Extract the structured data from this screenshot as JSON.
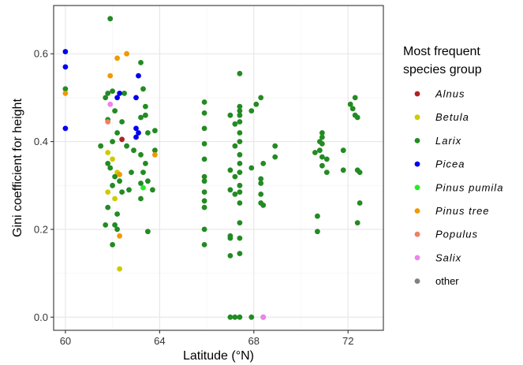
{
  "chart_data": {
    "type": "scatter",
    "xlabel": "Latitude (°N)",
    "ylabel": "Gini coefficient for height",
    "xlim": [
      59.5,
      73.5
    ],
    "ylim": [
      -0.03,
      0.71
    ],
    "xticks": [
      60,
      64,
      68,
      72
    ],
    "xtick_labels": [
      "60",
      "64",
      "68",
      "72"
    ],
    "yticks": [
      0.0,
      0.2,
      0.4,
      0.6
    ],
    "ytick_labels": [
      "0.0",
      "0.2",
      "0.4",
      "0.6"
    ],
    "grid": true,
    "legend": {
      "position": "right",
      "title_lines": [
        "Most frequent",
        "species group"
      ]
    },
    "series": [
      {
        "name": "Alnus",
        "italic": true,
        "color": "#B22222",
        "points": [
          [
            62.4,
            0.405
          ]
        ]
      },
      {
        "name": "Betula",
        "italic": true,
        "color": "#CCCC00",
        "points": [
          [
            61.8,
            0.285
          ],
          [
            62.1,
            0.27
          ],
          [
            62.3,
            0.11
          ],
          [
            62.2,
            0.33
          ],
          [
            61.8,
            0.375
          ],
          [
            62.0,
            0.36
          ]
        ]
      },
      {
        "name": "Larix",
        "italic": true,
        "color": "#228B22",
        "points": [
          [
            60.0,
            0.52
          ],
          [
            61.5,
            0.39
          ],
          [
            61.7,
            0.5
          ],
          [
            61.8,
            0.51
          ],
          [
            61.9,
            0.68
          ],
          [
            62.0,
            0.515
          ],
          [
            61.8,
            0.45
          ],
          [
            62.1,
            0.47
          ],
          [
            62.2,
            0.42
          ],
          [
            62.0,
            0.4
          ],
          [
            61.8,
            0.35
          ],
          [
            61.9,
            0.34
          ],
          [
            62.1,
            0.32
          ],
          [
            62.3,
            0.31
          ],
          [
            62.0,
            0.3
          ],
          [
            61.8,
            0.25
          ],
          [
            62.2,
            0.235
          ],
          [
            61.7,
            0.21
          ],
          [
            62.1,
            0.21
          ],
          [
            62.2,
            0.2
          ],
          [
            62.0,
            0.165
          ],
          [
            62.4,
            0.285
          ],
          [
            62.6,
            0.39
          ],
          [
            62.4,
            0.445
          ],
          [
            62.5,
            0.51
          ],
          [
            62.9,
            0.38
          ],
          [
            63.2,
            0.58
          ],
          [
            63.3,
            0.52
          ],
          [
            63.4,
            0.48
          ],
          [
            63.2,
            0.455
          ],
          [
            63.4,
            0.46
          ],
          [
            63.5,
            0.42
          ],
          [
            63.2,
            0.37
          ],
          [
            63.4,
            0.35
          ],
          [
            63.3,
            0.33
          ],
          [
            63.2,
            0.305
          ],
          [
            63.5,
            0.31
          ],
          [
            63.2,
            0.27
          ],
          [
            63.7,
            0.29
          ],
          [
            63.8,
            0.38
          ],
          [
            63.8,
            0.425
          ],
          [
            63.5,
            0.195
          ],
          [
            62.8,
            0.33
          ],
          [
            62.7,
            0.29
          ],
          [
            65.9,
            0.49
          ],
          [
            65.9,
            0.465
          ],
          [
            65.9,
            0.43
          ],
          [
            65.9,
            0.395
          ],
          [
            65.9,
            0.36
          ],
          [
            65.9,
            0.32
          ],
          [
            65.9,
            0.31
          ],
          [
            65.9,
            0.285
          ],
          [
            65.9,
            0.265
          ],
          [
            65.9,
            0.25
          ],
          [
            65.9,
            0.2
          ],
          [
            65.9,
            0.165
          ],
          [
            67.0,
            0.46
          ],
          [
            67.0,
            0.335
          ],
          [
            67.0,
            0.29
          ],
          [
            67.0,
            0.185
          ],
          [
            67.0,
            0.18
          ],
          [
            67.0,
            0.14
          ],
          [
            67.0,
            0.0
          ],
          [
            67.2,
            0.44
          ],
          [
            67.2,
            0.39
          ],
          [
            67.2,
            0.32
          ],
          [
            67.2,
            0.28
          ],
          [
            67.2,
            0.0
          ],
          [
            67.4,
            0.555
          ],
          [
            67.4,
            0.48
          ],
          [
            67.4,
            0.47
          ],
          [
            67.4,
            0.46
          ],
          [
            67.4,
            0.445
          ],
          [
            67.4,
            0.42
          ],
          [
            67.4,
            0.4
          ],
          [
            67.4,
            0.37
          ],
          [
            67.4,
            0.35
          ],
          [
            67.4,
            0.33
          ],
          [
            67.4,
            0.3
          ],
          [
            67.4,
            0.285
          ],
          [
            67.4,
            0.26
          ],
          [
            67.4,
            0.215
          ],
          [
            67.4,
            0.18
          ],
          [
            67.4,
            0.145
          ],
          [
            67.4,
            0.0
          ],
          [
            67.9,
            0.47
          ],
          [
            67.9,
            0.34
          ],
          [
            67.9,
            0.0
          ],
          [
            68.1,
            0.485
          ],
          [
            68.3,
            0.5
          ],
          [
            68.3,
            0.315
          ],
          [
            68.3,
            0.305
          ],
          [
            68.3,
            0.28
          ],
          [
            68.3,
            0.26
          ],
          [
            68.4,
            0.35
          ],
          [
            68.4,
            0.255
          ],
          [
            68.4,
            0.0
          ],
          [
            68.9,
            0.39
          ],
          [
            68.9,
            0.365
          ],
          [
            70.6,
            0.375
          ],
          [
            70.8,
            0.4
          ],
          [
            70.8,
            0.38
          ],
          [
            70.9,
            0.42
          ],
          [
            70.9,
            0.41
          ],
          [
            70.9,
            0.395
          ],
          [
            70.9,
            0.365
          ],
          [
            70.9,
            0.345
          ],
          [
            71.1,
            0.36
          ],
          [
            71.1,
            0.33
          ],
          [
            70.7,
            0.23
          ],
          [
            70.7,
            0.195
          ],
          [
            71.8,
            0.38
          ],
          [
            71.8,
            0.335
          ],
          [
            72.1,
            0.485
          ],
          [
            72.2,
            0.475
          ],
          [
            72.3,
            0.46
          ],
          [
            72.4,
            0.455
          ],
          [
            72.3,
            0.5
          ],
          [
            72.4,
            0.335
          ],
          [
            72.5,
            0.33
          ],
          [
            72.4,
            0.215
          ],
          [
            72.5,
            0.26
          ]
        ]
      },
      {
        "name": "Picea",
        "italic": true,
        "color": "#0000EE",
        "points": [
          [
            60.0,
            0.605
          ],
          [
            60.0,
            0.57
          ],
          [
            60.0,
            0.43
          ],
          [
            63.1,
            0.55
          ],
          [
            63.0,
            0.5
          ],
          [
            63.0,
            0.43
          ],
          [
            63.1,
            0.42
          ],
          [
            63.0,
            0.41
          ],
          [
            62.3,
            0.51
          ],
          [
            62.2,
            0.5
          ]
        ]
      },
      {
        "name": "Pinus  pumila",
        "italic": true,
        "color": "#22EE22",
        "points": [
          [
            63.3,
            0.295
          ]
        ]
      },
      {
        "name": "Pinus  tree",
        "italic": true,
        "color": "#EE9A00",
        "points": [
          [
            60.0,
            0.51
          ],
          [
            61.9,
            0.55
          ],
          [
            62.2,
            0.59
          ],
          [
            62.6,
            0.6
          ],
          [
            62.3,
            0.325
          ],
          [
            62.3,
            0.185
          ],
          [
            63.8,
            0.37
          ]
        ]
      },
      {
        "name": "Populus",
        "italic": true,
        "color": "#F08060",
        "points": [
          [
            61.8,
            0.445
          ]
        ]
      },
      {
        "name": "Salix",
        "italic": true,
        "color": "#EE82EE",
        "points": [
          [
            61.9,
            0.485
          ],
          [
            68.4,
            0.0
          ]
        ]
      },
      {
        "name": "other",
        "italic": false,
        "color": "#808080",
        "points": []
      }
    ]
  }
}
